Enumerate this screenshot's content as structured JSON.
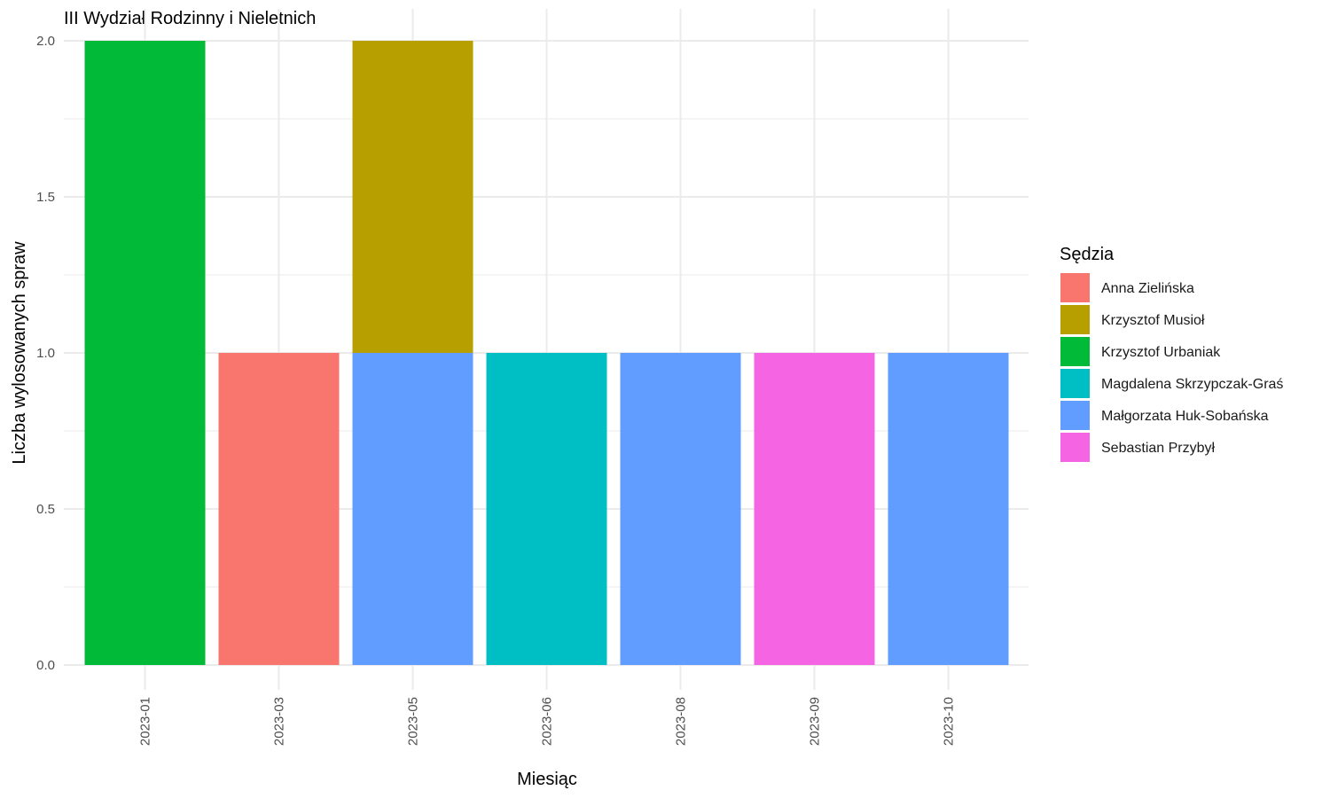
{
  "chart_data": {
    "type": "bar",
    "stacked": true,
    "title": "III Wydział Rodzinny i Nieletnich",
    "xlabel": "Miesiąc",
    "ylabel": "Liczba wylosowanych spraw",
    "categories": [
      "2023-01",
      "2023-03",
      "2023-05",
      "2023-06",
      "2023-08",
      "2023-09",
      "2023-10"
    ],
    "ylim": [
      0,
      2
    ],
    "yticks": [
      "0.0",
      "0.5",
      "1.0",
      "1.5",
      "2.0"
    ],
    "ytick_values": [
      0,
      0.5,
      1.0,
      1.5,
      2.0
    ],
    "grid": true,
    "legend_title": "Sędzia",
    "legend_position": "right",
    "series": [
      {
        "name": "Anna Zielińska",
        "color": "#F8766D",
        "values": [
          0,
          1,
          0,
          0,
          0,
          0,
          0
        ]
      },
      {
        "name": "Krzysztof Musioł",
        "color": "#B79F00",
        "values": [
          0,
          0,
          1,
          0,
          0,
          0,
          0
        ]
      },
      {
        "name": "Krzysztof Urbaniak",
        "color": "#00BA38",
        "values": [
          2,
          0,
          0,
          0,
          0,
          0,
          0
        ]
      },
      {
        "name": "Magdalena Skrzypczak-Graś",
        "color": "#00BFC4",
        "values": [
          0,
          0,
          0,
          1,
          0,
          0,
          0
        ]
      },
      {
        "name": "Małgorzata Huk-Sobańska",
        "color": "#619CFF",
        "values": [
          0,
          0,
          1,
          0,
          1,
          0,
          1
        ]
      },
      {
        "name": "Sebastian Przybył",
        "color": "#F564E3",
        "values": [
          0,
          0,
          0,
          0,
          0,
          1,
          0
        ]
      }
    ]
  }
}
